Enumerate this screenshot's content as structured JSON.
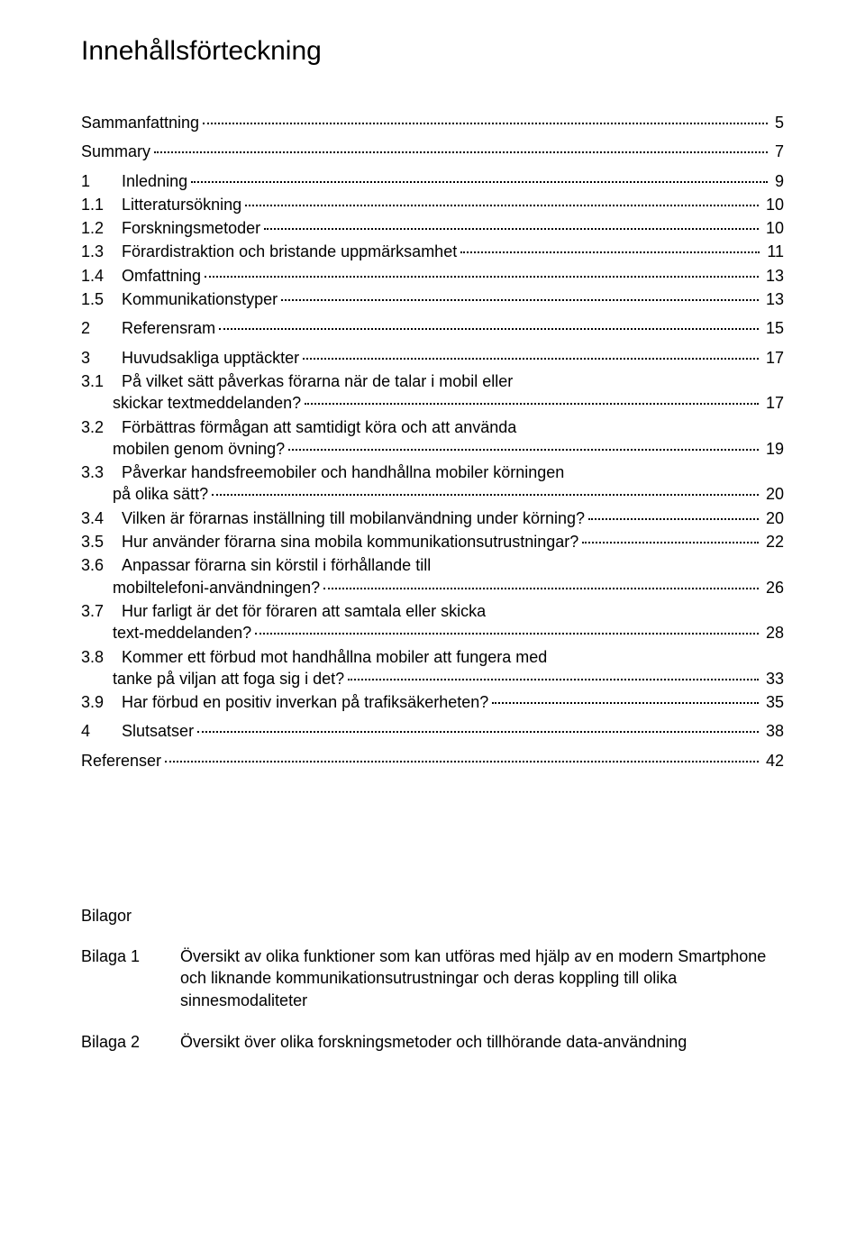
{
  "title": "Innehållsförteckning",
  "entries": [
    {
      "num": "",
      "text": "Sammanfattning",
      "page": "5",
      "gapAfter": "small"
    },
    {
      "num": "",
      "text": "Summary",
      "page": "7",
      "gapAfter": "small"
    },
    {
      "num": "1",
      "text": "Inledning",
      "page": "9"
    },
    {
      "num": "1.1",
      "text": "Litteratursökning",
      "page": "10"
    },
    {
      "num": "1.2",
      "text": "Forskningsmetoder",
      "page": "10"
    },
    {
      "num": "1.3",
      "text": "Förardistraktion och bristande uppmärksamhet",
      "page": "11"
    },
    {
      "num": "1.4",
      "text": "Omfattning",
      "page": "13"
    },
    {
      "num": "1.5",
      "text": "Kommunikationstyper",
      "page": "13",
      "gapAfter": "small"
    },
    {
      "num": "2",
      "text": "Referensram",
      "page": "15",
      "gapAfter": "small"
    },
    {
      "num": "3",
      "text": "Huvudsakliga upptäckter",
      "page": "17"
    },
    {
      "num": "3.1",
      "text": "På vilket sätt påverkas förarna när de talar i mobil eller skickar textmeddelanden?",
      "page": "17",
      "multiline": true
    },
    {
      "num": "3.2",
      "text": "Förbättras förmågan att samtidigt köra och att använda mobilen genom övning?",
      "page": "19",
      "multiline": true
    },
    {
      "num": "3.3",
      "text": "Påverkar handsfreemobiler och handhållna mobiler körningen på olika sätt?",
      "page": "20",
      "multiline": true
    },
    {
      "num": "3.4",
      "text": "Vilken är förarnas inställning till mobilanvändning under körning?",
      "page": "20"
    },
    {
      "num": "3.5",
      "text": "Hur använder förarna sina mobila kommunikationsutrustningar?",
      "page": "22"
    },
    {
      "num": "3.6",
      "text": "Anpassar förarna sin körstil i förhållande till mobiltelefoni-användningen?",
      "page": "26",
      "multiline": true
    },
    {
      "num": "3.7",
      "text": "Hur farligt är det för föraren att samtala eller skicka text-meddelanden?",
      "page": "28",
      "multiline": true
    },
    {
      "num": "3.8",
      "text": "Kommer ett förbud mot handhållna mobiler att fungera med tanke på viljan att foga sig i det?",
      "page": "33",
      "multiline": true
    },
    {
      "num": "3.9",
      "text": "Har förbud en positiv inverkan på trafiksäkerheten?",
      "page": "35",
      "gapAfter": "small"
    },
    {
      "num": "4",
      "text": "Slutsatser",
      "page": "38",
      "gapAfter": "small"
    },
    {
      "num": "",
      "text": "Referenser",
      "page": "42"
    }
  ],
  "bilagor": {
    "heading": "Bilagor",
    "items": [
      {
        "label": "Bilaga 1",
        "text": "Översikt av olika funktioner som kan utföras med hjälp av en modern Smartphone och liknande kommunikationsutrustningar och deras koppling till olika sinnesmodaliteter"
      },
      {
        "label": "Bilaga 2",
        "text": "Översikt över olika forskningsmetoder och tillhörande data-användning"
      }
    ]
  }
}
